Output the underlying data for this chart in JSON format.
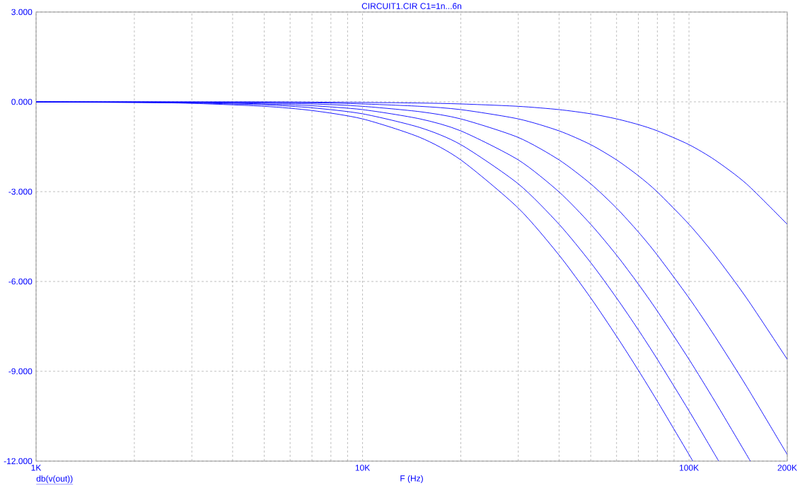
{
  "chart_data": {
    "type": "line",
    "title": "CIRCUIT1.CIR C1=1n...6n",
    "xlabel": "F (Hz)",
    "annotations": [
      "db(v(out))"
    ],
    "log": "x",
    "grid": true,
    "xlim": [
      1000,
      200000
    ],
    "ylim": [
      -12,
      3
    ],
    "xticks": [
      {
        "value": 1000,
        "label": "1K"
      },
      {
        "value": 10000,
        "label": "10K"
      },
      {
        "value": 100000,
        "label": "100K"
      },
      {
        "value": 200000,
        "label": "200K"
      }
    ],
    "yticks": [
      {
        "value": -12,
        "label": "-12.000"
      },
      {
        "value": -9,
        "label": "-9.000"
      },
      {
        "value": -6,
        "label": "-6.000"
      },
      {
        "value": -3,
        "label": "-3.000"
      },
      {
        "value": 0,
        "label": "0.000"
      },
      {
        "value": 3,
        "label": "3.000"
      }
    ],
    "series": [
      {
        "color": "#0000ff",
        "x": [
          1000,
          2000,
          3000,
          5000,
          7000,
          10000,
          15000,
          20000,
          30000,
          40000,
          50000,
          60000,
          70000,
          80000,
          100000,
          120000,
          150000,
          200000
        ],
        "values": [
          0.0,
          0.0,
          0.0,
          0.0,
          -0.01,
          -0.02,
          -0.04,
          -0.07,
          -0.15,
          -0.26,
          -0.4,
          -0.57,
          -0.76,
          -0.97,
          -1.43,
          -1.94,
          -2.74,
          -4.09
        ]
      },
      {
        "color": "#0000ff",
        "x": [
          1000,
          2000,
          3000,
          5000,
          7000,
          10000,
          15000,
          20000,
          30000,
          40000,
          50000,
          60000,
          70000,
          80000,
          100000,
          120000,
          150000,
          200000
        ],
        "values": [
          0.0,
          0.0,
          -0.01,
          -0.02,
          -0.03,
          -0.07,
          -0.15,
          -0.26,
          -0.57,
          -0.97,
          -1.43,
          -1.94,
          -2.47,
          -3.01,
          -4.09,
          -5.12,
          -6.55,
          -8.6
        ]
      },
      {
        "color": "#0000ff",
        "x": [
          1000,
          2000,
          3000,
          5000,
          7000,
          10000,
          15000,
          20000,
          30000,
          40000,
          50000,
          60000,
          70000,
          80000,
          100000,
          120000,
          150000,
          200000
        ],
        "values": [
          0.0,
          -0.01,
          -0.01,
          -0.04,
          -0.07,
          -0.15,
          -0.33,
          -0.57,
          -1.19,
          -1.94,
          -2.74,
          -3.55,
          -4.35,
          -5.12,
          -6.55,
          -7.83,
          -9.5,
          -11.78
        ]
      },
      {
        "color": "#0000ff",
        "x": [
          1000,
          2000,
          3000,
          5000,
          7000,
          10000,
          15000,
          20000,
          30000,
          40000,
          50000,
          60000,
          70000,
          80000,
          100000,
          120000,
          150000,
          154100
        ],
        "values": [
          0.0,
          -0.01,
          -0.02,
          -0.07,
          -0.13,
          -0.26,
          -0.57,
          -0.97,
          -1.94,
          -3.01,
          -4.09,
          -5.12,
          -6.09,
          -6.99,
          -8.6,
          -10.0,
          -11.78,
          -12.0
        ]
      },
      {
        "color": "#0000ff",
        "x": [
          1000,
          2000,
          3000,
          5000,
          7000,
          10000,
          15000,
          20000,
          30000,
          40000,
          50000,
          60000,
          70000,
          80000,
          100000,
          120000,
          123300
        ],
        "values": [
          0.0,
          -0.02,
          -0.04,
          -0.1,
          -0.2,
          -0.4,
          -0.86,
          -1.43,
          -2.74,
          -4.09,
          -5.37,
          -6.55,
          -7.62,
          -8.6,
          -10.32,
          -11.78,
          -12.0
        ]
      },
      {
        "color": "#0000ff",
        "x": [
          1000,
          2000,
          3000,
          5000,
          7000,
          10000,
          15000,
          20000,
          30000,
          40000,
          50000,
          60000,
          70000,
          80000,
          100000,
          102700
        ],
        "values": [
          -0.01,
          -0.02,
          -0.05,
          -0.15,
          -0.29,
          -0.57,
          -1.19,
          -1.94,
          -3.55,
          -5.12,
          -6.55,
          -7.83,
          -8.97,
          -10.0,
          -11.78,
          -12.0
        ]
      }
    ]
  }
}
